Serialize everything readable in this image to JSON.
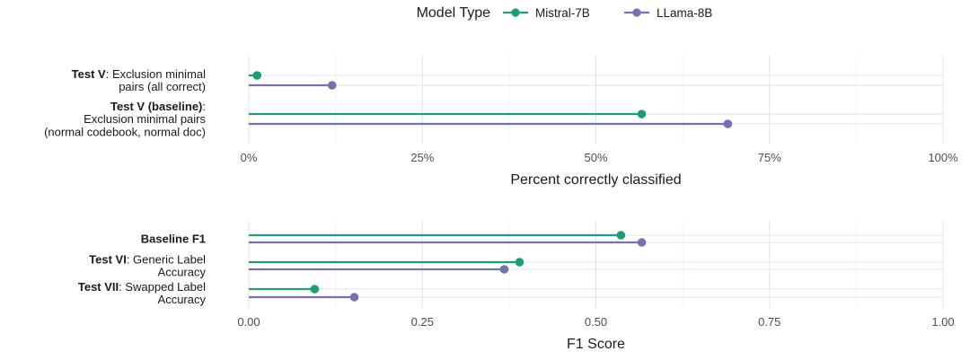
{
  "chart_data": [
    {
      "type": "lollipop",
      "xlabel": "Percent correctly classified",
      "xlim": [
        0,
        1
      ],
      "x_ticks": [
        "0%",
        "25%",
        "50%",
        "75%",
        "100%"
      ],
      "categories": [
        {
          "bold": "Test V",
          "rest": ": Exclusion minimal pairs (all correct)",
          "lines": [
            [
              [
                "Test V",
                true
              ],
              [
                ": Exclusion minimal",
                false
              ]
            ],
            [
              [
                "pairs (all correct)",
                false
              ]
            ]
          ]
        },
        {
          "bold": "Test V (baseline)",
          "rest": ": Exclusion minimal pairs (normal codebook, normal doc)",
          "lines": [
            [
              [
                "Test V (baseline)",
                true
              ],
              [
                ":",
                false
              ]
            ],
            [
              [
                "Exclusion minimal pairs",
                false
              ]
            ],
            [
              [
                "(normal codebook, normal doc)",
                false
              ]
            ]
          ]
        }
      ],
      "series": [
        {
          "name": "Mistral-7B",
          "values": [
            0.012,
            0.566
          ]
        },
        {
          "name": "LLama-8B",
          "values": [
            0.12,
            0.69
          ]
        }
      ]
    },
    {
      "type": "lollipop",
      "xlabel": "F1 Score",
      "xlim": [
        0,
        1
      ],
      "x_ticks": [
        "0.00",
        "0.25",
        "0.50",
        "0.75",
        "1.00"
      ],
      "categories": [
        {
          "bold": "Baseline F1",
          "rest": "",
          "lines": [
            [
              [
                "Baseline F1",
                true
              ]
            ]
          ]
        },
        {
          "bold": "Test VI",
          "rest": ": Generic Label Accuracy",
          "lines": [
            [
              [
                "Test VI",
                true
              ],
              [
                ": Generic Label",
                false
              ]
            ],
            [
              [
                "Accuracy",
                false
              ]
            ]
          ]
        },
        {
          "bold": "Test VII",
          "rest": ": Swapped Label Accuracy",
          "lines": [
            [
              [
                "Test VII",
                true
              ],
              [
                ": Swapped Label",
                false
              ]
            ],
            [
              [
                "Accuracy",
                false
              ]
            ]
          ]
        }
      ],
      "series": [
        {
          "name": "Mistral-7B",
          "values": [
            0.536,
            0.39,
            0.095
          ]
        },
        {
          "name": "LLama-8B",
          "values": [
            0.566,
            0.368,
            0.152
          ]
        }
      ]
    }
  ],
  "legend": {
    "title": "Model Type",
    "position": "top",
    "entries": [
      {
        "name": "Mistral-7B",
        "color": "#1b9e77"
      },
      {
        "name": "LLama-8B",
        "color": "#7570b3"
      }
    ]
  },
  "colors": {
    "mistral": "#1b9e77",
    "llama": "#7570b3"
  }
}
